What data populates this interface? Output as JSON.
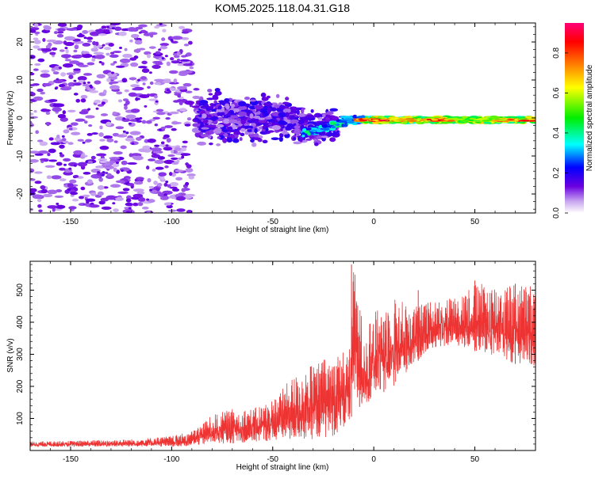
{
  "title": "KOM5.2025.118.04.31.G18",
  "chart_data": [
    {
      "type": "heatmap",
      "xlabel": "Height of straight line (km)",
      "ylabel": "Frequency (Hz)",
      "xlim": [
        -170,
        80
      ],
      "ylim": [
        -25,
        25
      ],
      "xticks": [
        -150,
        -100,
        -50,
        0,
        50
      ],
      "yticks": [
        -20,
        -10,
        0,
        10,
        20
      ],
      "colorbar": {
        "label": "Normalized spectral amplitude",
        "range": [
          0.0,
          0.95
        ],
        "ticks": [
          "0.0",
          "0.2",
          "0.4",
          "0.6",
          "0.8"
        ],
        "colormap": "rainbow (white/violet at 0 → blue → cyan → green → yellow → red → magenta at max)"
      },
      "description_points": [
        {
          "x": -140,
          "y": 0,
          "amplitude": 0.02
        },
        {
          "x": -60,
          "y": 0,
          "amplitude": 0.1
        },
        {
          "x": -30,
          "y": -3,
          "amplitude": 0.25
        },
        {
          "x": -15,
          "y": 0,
          "amplitude": 0.45
        },
        {
          "x": 0,
          "y": -0.5,
          "amplitude": 0.7
        },
        {
          "x": 20,
          "y": -0.5,
          "amplitude": 0.85
        },
        {
          "x": 50,
          "y": -0.5,
          "amplitude": 0.75
        },
        {
          "x": 80,
          "y": -0.5,
          "amplitude": 0.85
        }
      ]
    },
    {
      "type": "line",
      "xlabel": "Height of straight line (km)",
      "ylabel": "SNR (v/v)",
      "xlim": [
        -170,
        80
      ],
      "ylim": [
        0,
        590
      ],
      "xticks": [
        -150,
        -100,
        -50,
        0,
        50
      ],
      "yticks": [
        100,
        200,
        300,
        400,
        500
      ],
      "series": [
        {
          "color": "#ee3333",
          "envelope_x": [
            -170,
            -150,
            -120,
            -100,
            -90,
            -80,
            -70,
            -60,
            -50,
            -40,
            -30,
            -20,
            -12,
            -10,
            -5,
            0,
            10,
            20,
            30,
            40,
            50,
            60,
            70,
            80
          ],
          "envelope_min": [
            12,
            12,
            12,
            12,
            14,
            20,
            22,
            25,
            30,
            30,
            35,
            45,
            80,
            130,
            140,
            165,
            200,
            270,
            320,
            330,
            310,
            290,
            270,
            260
          ],
          "envelope_max": [
            28,
            30,
            35,
            45,
            60,
            110,
            130,
            130,
            160,
            230,
            270,
            300,
            320,
            580,
            380,
            430,
            480,
            450,
            470,
            480,
            520,
            520,
            520,
            520
          ],
          "spikes": [
            {
              "x": -11,
              "y": 580
            },
            {
              "x": -7,
              "y": 360
            },
            {
              "x": 5,
              "y": 400
            },
            {
              "x": 22,
              "y": 500
            },
            {
              "x": 50,
              "y": 530
            },
            {
              "x": 70,
              "y": 520
            }
          ]
        }
      ]
    }
  ]
}
